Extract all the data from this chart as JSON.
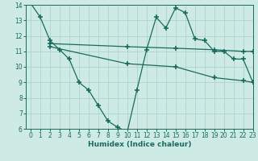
{
  "line1_x": [
    0,
    1,
    2,
    3,
    4,
    5,
    6,
    7,
    8,
    9,
    10,
    11,
    12,
    13,
    14,
    15,
    16,
    17,
    18,
    19,
    20,
    21,
    22,
    23
  ],
  "line1_y": [
    14.1,
    13.2,
    11.7,
    11.1,
    10.5,
    9.0,
    8.5,
    7.5,
    6.5,
    6.1,
    5.8,
    8.5,
    11.1,
    13.2,
    12.5,
    13.8,
    13.5,
    11.8,
    11.7,
    11.0,
    11.0,
    10.5,
    10.5,
    9.0
  ],
  "line2_x": [
    2,
    10,
    15,
    19,
    22,
    23
  ],
  "line2_y": [
    11.5,
    11.3,
    11.2,
    11.1,
    11.0,
    11.0
  ],
  "line3_x": [
    2,
    10,
    15,
    19,
    22,
    23
  ],
  "line3_y": [
    11.3,
    10.2,
    10.0,
    9.3,
    9.1,
    9.0
  ],
  "line_color": "#1a6b5e",
  "bg_color": "#cdeae5",
  "grid_color": "#aed4cc",
  "xlabel": "Humidex (Indice chaleur)",
  "ylim": [
    6,
    14
  ],
  "xlim": [
    -0.5,
    23
  ],
  "yticks": [
    6,
    7,
    8,
    9,
    10,
    11,
    12,
    13,
    14
  ],
  "xticks": [
    0,
    1,
    2,
    3,
    4,
    5,
    6,
    7,
    8,
    9,
    10,
    11,
    12,
    13,
    14,
    15,
    16,
    17,
    18,
    19,
    20,
    21,
    22,
    23
  ],
  "tick_fontsize": 5.5,
  "xlabel_fontsize": 6.5
}
